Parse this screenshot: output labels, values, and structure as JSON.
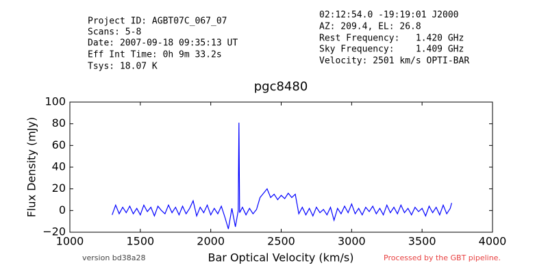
{
  "header": {
    "left": [
      "Project ID: AGBT07C_067_07",
      "Scans: 5-8",
      "Date: 2007-09-18 09:35:13 UT",
      "Eff Int Time: 0h 9m 33.2s",
      "Tsys: 18.07 K"
    ],
    "right": [
      "02:12:54.0 -19:19:01 J2000",
      "AZ: 209.4, EL: 26.8",
      "Rest Frequency:   1.420 GHz",
      "Sky Frequency:    1.409 GHz",
      "Velocity: 2501 km/s OPTI-BAR"
    ]
  },
  "footer": {
    "version": "version bd38a28",
    "pipeline": "Processed by the GBT pipeline."
  },
  "chart_data": {
    "type": "line",
    "title": "pgc8480",
    "x_label": "Bar Optical Velocity (km/s)",
    "y_label": "Flux Density (mJy)",
    "xlim": [
      1000,
      4000
    ],
    "ylim": [
      -20,
      100
    ],
    "xticks": [
      1000,
      1500,
      2000,
      2500,
      3000,
      3500,
      4000
    ],
    "yticks": [
      {
        "value": -20,
        "label": "−20"
      },
      0,
      20,
      40,
      60,
      80,
      100
    ],
    "grid": false,
    "series": [
      {
        "color": "#0000ff",
        "x": [
          1300,
          1325,
          1350,
          1375,
          1400,
          1425,
          1450,
          1475,
          1500,
          1525,
          1550,
          1575,
          1600,
          1625,
          1650,
          1675,
          1700,
          1725,
          1750,
          1775,
          1800,
          1825,
          1850,
          1875,
          1900,
          1925,
          1950,
          1975,
          2000,
          2025,
          2050,
          2075,
          2100,
          2125,
          2150,
          2175,
          2195,
          2200,
          2205,
          2225,
          2250,
          2275,
          2300,
          2325,
          2350,
          2375,
          2400,
          2425,
          2450,
          2475,
          2500,
          2525,
          2550,
          2575,
          2600,
          2625,
          2650,
          2675,
          2700,
          2725,
          2750,
          2775,
          2800,
          2825,
          2850,
          2875,
          2900,
          2925,
          2950,
          2975,
          3000,
          3025,
          3050,
          3075,
          3100,
          3125,
          3150,
          3175,
          3200,
          3225,
          3250,
          3275,
          3300,
          3325,
          3350,
          3375,
          3400,
          3425,
          3450,
          3475,
          3500,
          3525,
          3550,
          3575,
          3600,
          3625,
          3650,
          3675,
          3700,
          3710
        ],
        "values": [
          -4,
          5,
          -3,
          3,
          -2,
          4,
          -3,
          2,
          -4,
          5,
          -1,
          3,
          -5,
          4,
          0,
          -3,
          5,
          -2,
          3,
          -4,
          4,
          -3,
          2,
          9,
          -5,
          3,
          -2,
          5,
          -4,
          2,
          -3,
          4,
          -6,
          -17,
          2,
          -15,
          0,
          81,
          -2,
          3,
          -4,
          2,
          -3,
          1,
          12,
          16,
          20,
          12,
          15,
          10,
          14,
          11,
          16,
          12,
          15,
          -3,
          3,
          -4,
          2,
          -5,
          3,
          -2,
          1,
          -4,
          3,
          -9,
          2,
          -3,
          4,
          -2,
          6,
          -3,
          2,
          -4,
          3,
          -1,
          4,
          -3,
          2,
          -4,
          5,
          -2,
          3,
          -3,
          5,
          -2,
          2,
          -4,
          3,
          -1,
          2,
          -5,
          4,
          -2,
          3,
          -4,
          5,
          -3,
          2,
          7
        ]
      }
    ]
  }
}
